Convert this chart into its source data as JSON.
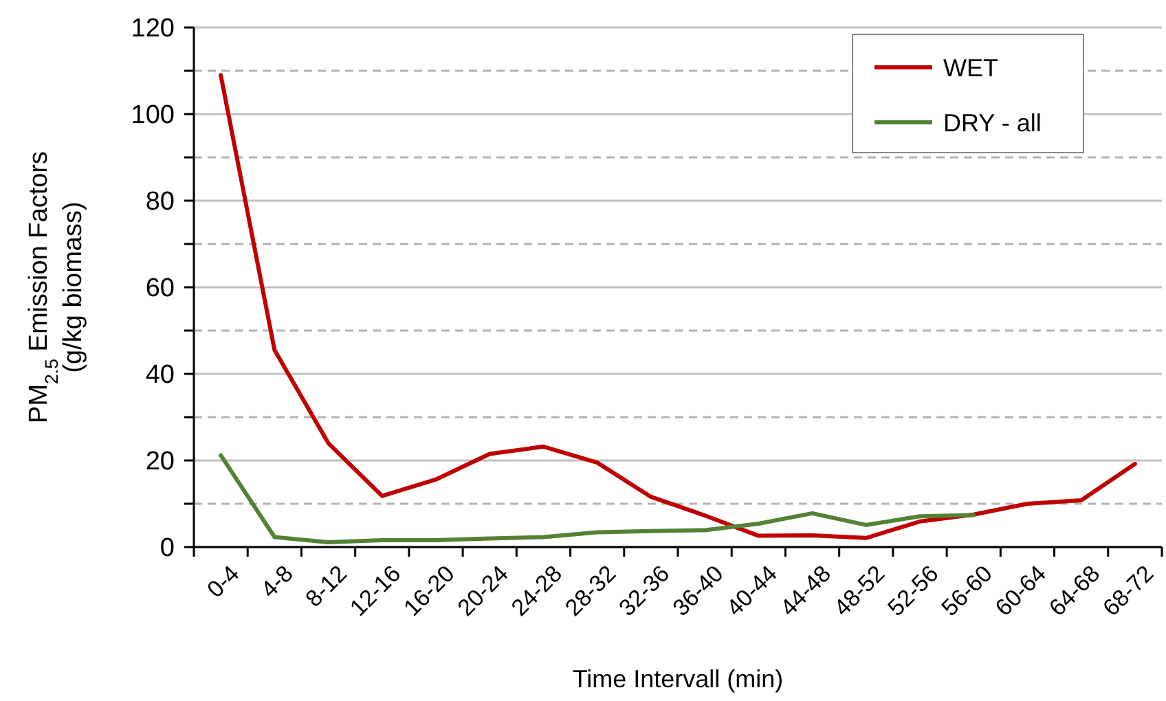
{
  "chart_data": {
    "type": "line",
    "xlabel": "Time Intervall (min)",
    "ylabel": "PM$_{2.5}$ Emission Factors\n(g/kg biomass)",
    "categories": [
      "0-4",
      "4-8",
      "8-12",
      "12-16",
      "16-20",
      "20-24",
      "24-28",
      "28-32",
      "32-36",
      "36-40",
      "40-44",
      "44-48",
      "48-52",
      "52-56",
      "56-60",
      "60-64",
      "64-68",
      "68-72"
    ],
    "series": [
      {
        "name": "WET",
        "color": "#c00000",
        "values": [
          109,
          45.5,
          24,
          11.8,
          15.6,
          21.5,
          23.2,
          19.5,
          11.6,
          7.3,
          2.6,
          2.7,
          2.1,
          5.9,
          7.5,
          10,
          10.8,
          19.2
        ]
      },
      {
        "name": "DRY - all",
        "color": "#548235",
        "values": [
          21.2,
          2.3,
          1.1,
          1.6,
          1.6,
          2,
          2.3,
          3.4,
          3.7,
          3.9,
          5.4,
          7.8,
          5.1,
          7.1,
          7.4,
          null,
          null,
          null
        ]
      }
    ],
    "ylim": [
      0,
      120
    ],
    "yticks": [
      0,
      {
        "value": 10,
        "label": null
      },
      20,
      {
        "value": 30,
        "label": null
      },
      40,
      {
        "value": 50,
        "label": null
      },
      60,
      {
        "value": 70,
        "label": null
      },
      80,
      {
        "value": 90,
        "label": null
      },
      100,
      {
        "value": 110,
        "label": null
      },
      120
    ],
    "grid": "y",
    "legend": "top right",
    "marker": "none",
    "line_style": "solid"
  }
}
